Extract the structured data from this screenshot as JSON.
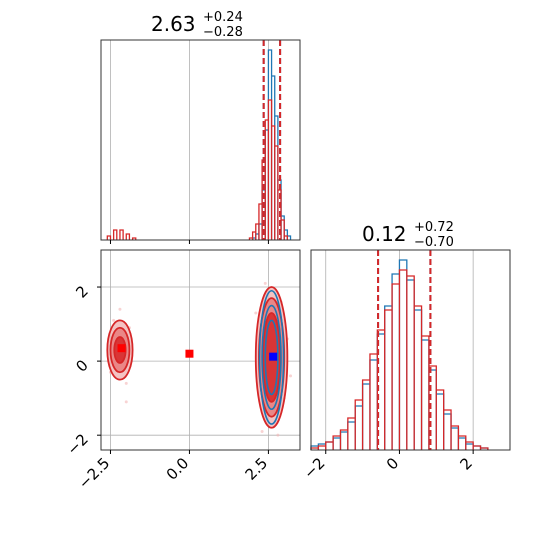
{
  "colors": {
    "blue": "#1f77b4",
    "red": "#d62728",
    "grid": "#b0b0b0",
    "blue_marker": "#0000ff",
    "red_marker": "#ff0000"
  },
  "chart_data": [
    {
      "type": "histogram",
      "panel": "marginal-x",
      "title": {
        "value": "2.63",
        "plus": "+0.24",
        "minus": "−0.28"
      },
      "xlim": [
        -2.8,
        3.5
      ],
      "quantiles": {
        "blue": [
          2.35,
          2.87
        ],
        "red": [
          2.35,
          2.87
        ]
      },
      "series": [
        {
          "color": "blue",
          "bins": [
            {
              "x": 2.05,
              "h": 0.01
            },
            {
              "x": 2.15,
              "h": 0.03
            },
            {
              "x": 2.25,
              "h": 0.08
            },
            {
              "x": 2.35,
              "h": 0.25
            },
            {
              "x": 2.45,
              "h": 0.55
            },
            {
              "x": 2.55,
              "h": 0.95
            },
            {
              "x": 2.65,
              "h": 0.82
            },
            {
              "x": 2.75,
              "h": 0.62
            },
            {
              "x": 2.85,
              "h": 0.3
            },
            {
              "x": 2.95,
              "h": 0.12
            },
            {
              "x": 3.05,
              "h": 0.05
            },
            {
              "x": 3.15,
              "h": 0.02
            }
          ]
        },
        {
          "color": "red",
          "bins": [
            {
              "x": -2.55,
              "h": 0.02
            },
            {
              "x": -2.35,
              "h": 0.05
            },
            {
              "x": -2.15,
              "h": 0.05
            },
            {
              "x": -1.95,
              "h": 0.03
            },
            {
              "x": -1.75,
              "h": 0.01
            },
            {
              "x": 1.95,
              "h": 0.01
            },
            {
              "x": 2.05,
              "h": 0.04
            },
            {
              "x": 2.15,
              "h": 0.08
            },
            {
              "x": 2.25,
              "h": 0.18
            },
            {
              "x": 2.35,
              "h": 0.4
            },
            {
              "x": 2.45,
              "h": 0.6
            },
            {
              "x": 2.55,
              "h": 0.7
            },
            {
              "x": 2.65,
              "h": 0.57
            },
            {
              "x": 2.75,
              "h": 0.47
            },
            {
              "x": 2.85,
              "h": 0.25
            },
            {
              "x": 2.95,
              "h": 0.1
            },
            {
              "x": 3.05,
              "h": 0.02
            }
          ]
        }
      ]
    },
    {
      "type": "contour",
      "panel": "joint",
      "xlim": [
        -2.8,
        3.5
      ],
      "ylim": [
        -2.4,
        3.0
      ],
      "xticks": [
        -2.5,
        0.0,
        2.5
      ],
      "xtick_labels": [
        "−2.5",
        "0.0",
        "2.5"
      ],
      "yticks": [
        -2,
        0,
        2
      ],
      "ytick_labels": [
        "−2",
        "0",
        "2"
      ],
      "red_contours": [
        {
          "cx": 2.6,
          "cy": 0.1,
          "rx": [
            0.28,
            0.4,
            0.5
          ],
          "ry": [
            1.2,
            1.6,
            1.9
          ]
        },
        {
          "cx": -2.2,
          "cy": 0.3,
          "rx": [
            0.18,
            0.3,
            0.4
          ],
          "ry": [
            0.35,
            0.6,
            0.8
          ]
        }
      ],
      "blue_contours": [
        {
          "cx": 2.6,
          "cy": 0.1,
          "rx": [
            0.2,
            0.3,
            0.38
          ],
          "ry": [
            1.0,
            1.4,
            1.8
          ]
        }
      ],
      "markers": [
        {
          "x": -2.15,
          "y": 0.35,
          "color": "red"
        },
        {
          "x": 0.0,
          "y": 0.2,
          "color": "red"
        },
        {
          "x": 2.65,
          "y": 0.12,
          "color": "blue"
        }
      ]
    },
    {
      "type": "histogram",
      "panel": "marginal-y",
      "title": {
        "value": "0.12",
        "plus": "+0.72",
        "minus": "−0.70"
      },
      "xlim": [
        -2.4,
        3.0
      ],
      "xticks": [
        -2,
        0,
        2
      ],
      "xtick_labels": [
        "−2",
        "0",
        "2"
      ],
      "quantiles": {
        "blue": [
          -0.58,
          0.84
        ],
        "red": [
          -0.58,
          0.84
        ]
      },
      "series": [
        {
          "color": "blue",
          "bins": [
            {
              "x": -2.3,
              "h": 0.02
            },
            {
              "x": -2.1,
              "h": 0.03
            },
            {
              "x": -1.9,
              "h": 0.04
            },
            {
              "x": -1.7,
              "h": 0.06
            },
            {
              "x": -1.5,
              "h": 0.09
            },
            {
              "x": -1.3,
              "h": 0.14
            },
            {
              "x": -1.1,
              "h": 0.22
            },
            {
              "x": -0.9,
              "h": 0.33
            },
            {
              "x": -0.7,
              "h": 0.45
            },
            {
              "x": -0.5,
              "h": 0.58
            },
            {
              "x": -0.3,
              "h": 0.72
            },
            {
              "x": -0.1,
              "h": 0.88
            },
            {
              "x": 0.1,
              "h": 0.95
            },
            {
              "x": 0.3,
              "h": 0.85
            },
            {
              "x": 0.5,
              "h": 0.7
            },
            {
              "x": 0.7,
              "h": 0.55
            },
            {
              "x": 0.9,
              "h": 0.4
            },
            {
              "x": 1.1,
              "h": 0.28
            },
            {
              "x": 1.3,
              "h": 0.18
            },
            {
              "x": 1.5,
              "h": 0.11
            },
            {
              "x": 1.7,
              "h": 0.06
            },
            {
              "x": 1.9,
              "h": 0.03
            },
            {
              "x": 2.1,
              "h": 0.02
            },
            {
              "x": 2.3,
              "h": 0.01
            }
          ]
        },
        {
          "color": "red",
          "bins": [
            {
              "x": -2.3,
              "h": 0.01
            },
            {
              "x": -2.1,
              "h": 0.02
            },
            {
              "x": -1.9,
              "h": 0.04
            },
            {
              "x": -1.7,
              "h": 0.07
            },
            {
              "x": -1.5,
              "h": 0.1
            },
            {
              "x": -1.3,
              "h": 0.16
            },
            {
              "x": -1.1,
              "h": 0.25
            },
            {
              "x": -0.9,
              "h": 0.35
            },
            {
              "x": -0.7,
              "h": 0.48
            },
            {
              "x": -0.5,
              "h": 0.6
            },
            {
              "x": -0.3,
              "h": 0.7
            },
            {
              "x": -0.1,
              "h": 0.83
            },
            {
              "x": 0.1,
              "h": 0.9
            },
            {
              "x": 0.3,
              "h": 0.87
            },
            {
              "x": 0.5,
              "h": 0.72
            },
            {
              "x": 0.7,
              "h": 0.57
            },
            {
              "x": 0.9,
              "h": 0.42
            },
            {
              "x": 1.1,
              "h": 0.3
            },
            {
              "x": 1.3,
              "h": 0.2
            },
            {
              "x": 1.5,
              "h": 0.12
            },
            {
              "x": 1.7,
              "h": 0.07
            },
            {
              "x": 1.9,
              "h": 0.04
            },
            {
              "x": 2.1,
              "h": 0.02
            },
            {
              "x": 2.3,
              "h": 0.01
            }
          ]
        }
      ]
    }
  ]
}
